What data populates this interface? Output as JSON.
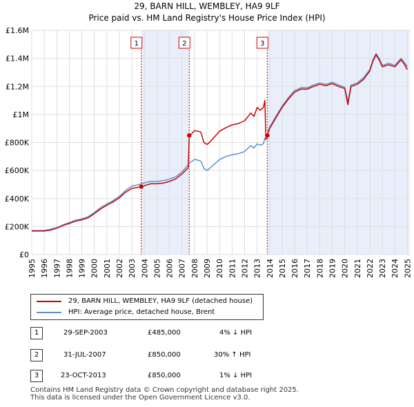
{
  "chart_data": {
    "type": "line",
    "title": "29, BARN HILL, WEMBLEY, HA9 9LF",
    "subtitle": "Price paid vs. HM Land Registry's House Price Index (HPI)",
    "xlim": [
      1995,
      2025.2
    ],
    "ylim": [
      0,
      1600000
    ],
    "x_ticks": [
      1995,
      1996,
      1997,
      1998,
      1999,
      2000,
      2001,
      2002,
      2003,
      2004,
      2005,
      2006,
      2007,
      2008,
      2009,
      2010,
      2011,
      2012,
      2013,
      2014,
      2015,
      2016,
      2017,
      2018,
      2019,
      2020,
      2021,
      2022,
      2023,
      2024,
      2025
    ],
    "y_ticks": [
      {
        "value": 0,
        "label": "£0"
      },
      {
        "value": 200000,
        "label": "£200K"
      },
      {
        "value": 400000,
        "label": "£400K"
      },
      {
        "value": 600000,
        "label": "£600K"
      },
      {
        "value": 800000,
        "label": "£800K"
      },
      {
        "value": 1000000,
        "label": "£1M"
      },
      {
        "value": 1200000,
        "label": "£1.2M"
      },
      {
        "value": 1400000,
        "label": "£1.4M"
      },
      {
        "value": 1600000,
        "label": "£1.6M"
      }
    ],
    "shaded_regions": [
      [
        2003.75,
        2007.58
      ],
      [
        2013.81,
        2025.2
      ]
    ],
    "series": [
      {
        "name": "29, BARN HILL, WEMBLEY, HA9 9LF (detached house)",
        "color": "#cc0000",
        "x": [
          1995.0,
          1995.5,
          1996.0,
          1996.5,
          1997.0,
          1997.5,
          1998.0,
          1998.5,
          1999.0,
          1999.5,
          2000.0,
          2000.5,
          2001.0,
          2001.5,
          2002.0,
          2002.5,
          2003.0,
          2003.5,
          2003.75,
          2004.0,
          2004.5,
          2005.0,
          2005.5,
          2006.0,
          2006.5,
          2007.0,
          2007.5,
          2007.58,
          2007.75,
          2008.0,
          2008.5,
          2008.75,
          2009.0,
          2009.25,
          2009.5,
          2010.0,
          2010.5,
          2011.0,
          2011.5,
          2012.0,
          2012.5,
          2012.75,
          2013.0,
          2013.25,
          2013.5,
          2013.62,
          2013.7,
          2013.81,
          2014.0,
          2014.5,
          2015.0,
          2015.5,
          2016.0,
          2016.5,
          2017.0,
          2017.5,
          2018.0,
          2018.5,
          2019.0,
          2019.5,
          2020.0,
          2020.25,
          2020.5,
          2021.0,
          2021.5,
          2022.0,
          2022.25,
          2022.5,
          2022.75,
          2023.0,
          2023.5,
          2024.0,
          2024.5,
          2024.75,
          2025.0
        ],
        "values": [
          168000,
          168000,
          168000,
          175000,
          188000,
          208000,
          222000,
          238000,
          248000,
          262000,
          292000,
          325000,
          352000,
          375000,
          405000,
          445000,
          472000,
          480000,
          485000,
          492000,
          505000,
          505000,
          510000,
          522000,
          540000,
          575000,
          620000,
          850000,
          860000,
          885000,
          875000,
          800000,
          785000,
          805000,
          830000,
          880000,
          905000,
          925000,
          935000,
          955000,
          1010000,
          985000,
          1050000,
          1030000,
          1050000,
          1100000,
          820000,
          850000,
          900000,
          975000,
          1050000,
          1110000,
          1160000,
          1180000,
          1180000,
          1200000,
          1215000,
          1205000,
          1220000,
          1200000,
          1185000,
          1070000,
          1200000,
          1215000,
          1250000,
          1310000,
          1380000,
          1425000,
          1390000,
          1340000,
          1355000,
          1340000,
          1390000,
          1360000,
          1320000
        ]
      },
      {
        "name": "HPI: Average price, detached house, Brent",
        "color": "#5b8fd0",
        "x": [
          1995.0,
          1995.5,
          1996.0,
          1996.5,
          1997.0,
          1997.5,
          1998.0,
          1998.5,
          1999.0,
          1999.5,
          2000.0,
          2000.5,
          2001.0,
          2001.5,
          2002.0,
          2002.5,
          2003.0,
          2003.5,
          2003.75,
          2004.0,
          2004.5,
          2005.0,
          2005.5,
          2006.0,
          2006.5,
          2007.0,
          2007.5,
          2007.58,
          2007.75,
          2008.0,
          2008.5,
          2008.75,
          2009.0,
          2009.25,
          2009.5,
          2010.0,
          2010.5,
          2011.0,
          2011.5,
          2012.0,
          2012.5,
          2012.75,
          2013.0,
          2013.25,
          2013.5,
          2013.62,
          2013.7,
          2013.81,
          2014.0,
          2014.5,
          2015.0,
          2015.5,
          2016.0,
          2016.5,
          2017.0,
          2017.5,
          2018.0,
          2018.5,
          2019.0,
          2019.5,
          2020.0,
          2020.25,
          2020.5,
          2021.0,
          2021.5,
          2022.0,
          2022.25,
          2022.5,
          2022.75,
          2023.0,
          2023.5,
          2024.0,
          2024.5,
          2024.75,
          2025.0
        ],
        "values": [
          172000,
          172000,
          172000,
          180000,
          192000,
          212000,
          228000,
          245000,
          255000,
          270000,
          300000,
          335000,
          362000,
          385000,
          415000,
          458000,
          488000,
          498000,
          505000,
          512000,
          522000,
          522000,
          528000,
          538000,
          555000,
          590000,
          640000,
          652000,
          662000,
          680000,
          668000,
          615000,
          600000,
          618000,
          638000,
          678000,
          700000,
          712000,
          720000,
          735000,
          778000,
          760000,
          790000,
          780000,
          790000,
          830000,
          832000,
          858000,
          910000,
          985000,
          1060000,
          1120000,
          1170000,
          1190000,
          1190000,
          1210000,
          1225000,
          1215000,
          1230000,
          1210000,
          1195000,
          1090000,
          1210000,
          1225000,
          1262000,
          1320000,
          1390000,
          1435000,
          1400000,
          1350000,
          1365000,
          1350000,
          1400000,
          1372000,
          1340000
        ]
      }
    ],
    "sales": [
      {
        "label": "1",
        "x": 2003.75,
        "value": 485000
      },
      {
        "label": "2",
        "x": 2007.58,
        "value": 850000
      },
      {
        "label": "3",
        "x": 2013.81,
        "value": 850000
      }
    ]
  },
  "table": [
    {
      "num": "1",
      "date": "29-SEP-2003",
      "price": "£485,000",
      "hpi": "4% ↓ HPI"
    },
    {
      "num": "2",
      "date": "31-JUL-2007",
      "price": "£850,000",
      "hpi": "30% ↑ HPI"
    },
    {
      "num": "3",
      "date": "23-OCT-2013",
      "price": "£850,000",
      "hpi": "1% ↓ HPI"
    }
  ],
  "footer": {
    "line1": "Contains HM Land Registry data © Crown copyright and database right 2025.",
    "line2": "This data is licensed under the Open Government Licence v3.0."
  }
}
